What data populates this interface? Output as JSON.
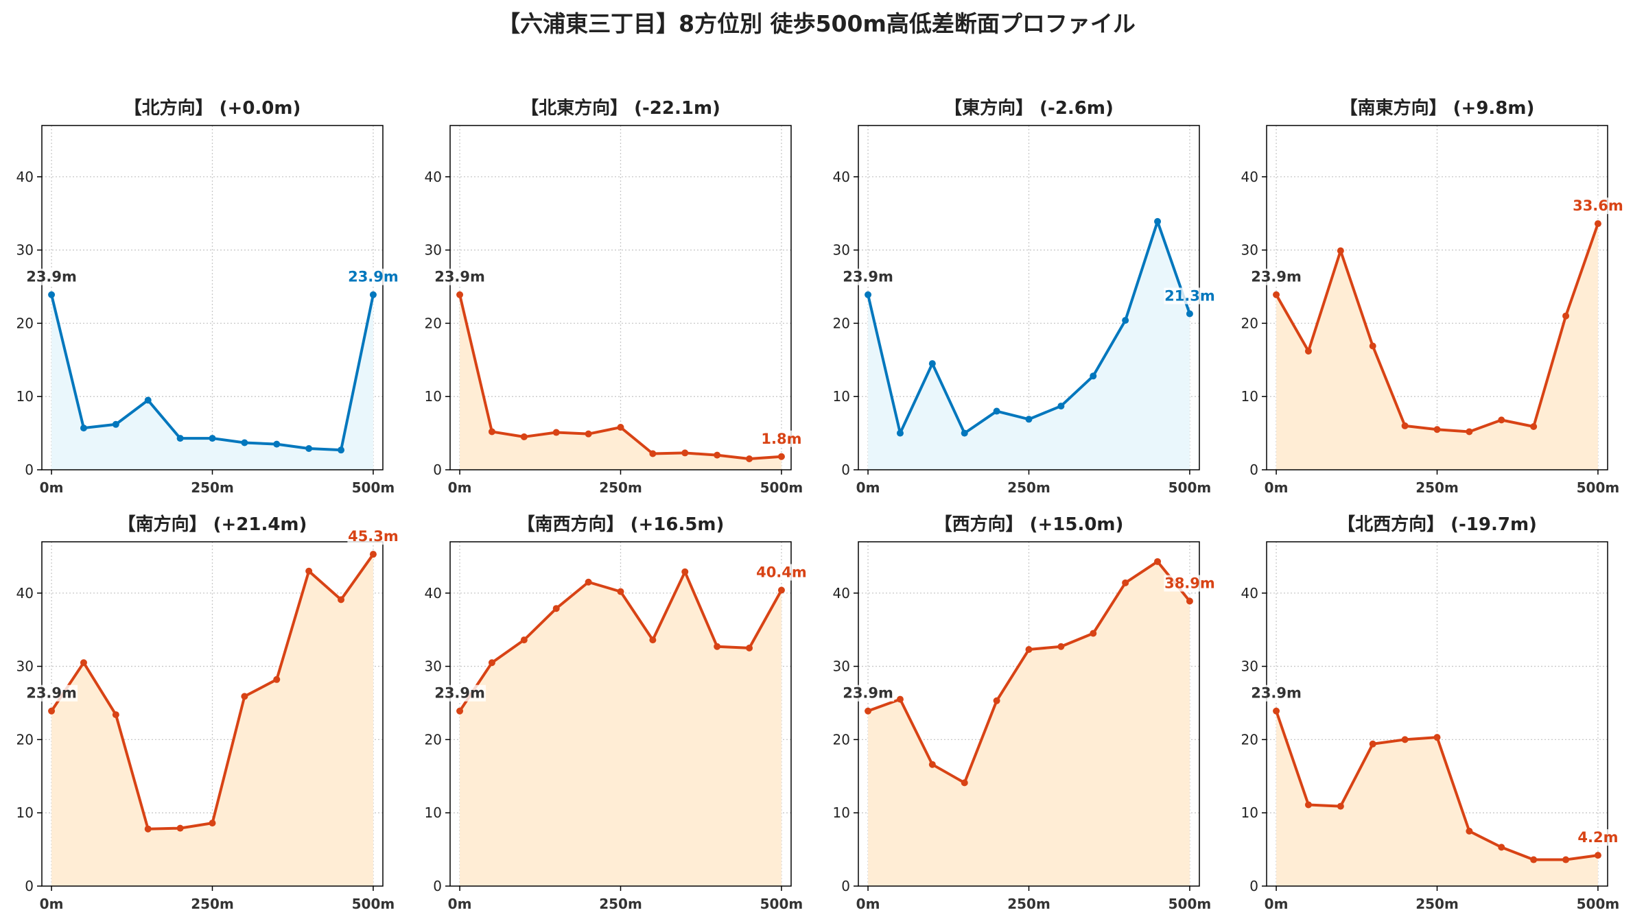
{
  "title": "【六浦東三丁目】8方位別 徒歩500m高低差断面プロファイル",
  "colors": {
    "up": "#d84315",
    "up_fill": "#ffedd5",
    "down": "#0277bd",
    "down_fill": "#eaf7fc",
    "label": "#333333"
  },
  "chart_data": [
    {
      "type": "area",
      "title": "【北方向】 (+0.0m)",
      "trend": "down",
      "x": [
        0,
        50,
        100,
        150,
        200,
        250,
        300,
        350,
        400,
        450,
        500
      ],
      "values": [
        23.9,
        5.7,
        6.2,
        9.5,
        4.3,
        4.3,
        3.7,
        3.5,
        2.9,
        2.7,
        23.9
      ],
      "start_label": "23.9m",
      "end_label": "23.9m",
      "xticks": [
        "0m",
        "250m",
        "500m"
      ],
      "yticks": [
        0,
        10,
        20,
        30,
        40
      ],
      "ylim": [
        0,
        47
      ],
      "xlim": [
        -15,
        515
      ],
      "grid": true
    },
    {
      "type": "area",
      "title": "【北東方向】 (-22.1m)",
      "trend": "up",
      "x": [
        0,
        50,
        100,
        150,
        200,
        250,
        300,
        350,
        400,
        450,
        500
      ],
      "values": [
        23.9,
        5.2,
        4.5,
        5.1,
        4.9,
        5.8,
        2.2,
        2.3,
        2.0,
        1.5,
        1.8
      ],
      "start_label": "23.9m",
      "end_label": "1.8m",
      "xticks": [
        "0m",
        "250m",
        "500m"
      ],
      "yticks": [
        0,
        10,
        20,
        30,
        40
      ],
      "ylim": [
        0,
        47
      ],
      "xlim": [
        -15,
        515
      ],
      "grid": true
    },
    {
      "type": "area",
      "title": "【東方向】 (-2.6m)",
      "trend": "down",
      "x": [
        0,
        50,
        100,
        150,
        200,
        250,
        300,
        350,
        400,
        450,
        500
      ],
      "values": [
        23.9,
        5.0,
        14.5,
        5.0,
        8.0,
        6.9,
        8.7,
        12.8,
        20.4,
        33.9,
        21.3
      ],
      "start_label": "23.9m",
      "end_label": "21.3m",
      "xticks": [
        "0m",
        "250m",
        "500m"
      ],
      "yticks": [
        0,
        10,
        20,
        30,
        40
      ],
      "ylim": [
        0,
        47
      ],
      "xlim": [
        -15,
        515
      ],
      "grid": true
    },
    {
      "type": "area",
      "title": "【南東方向】 (+9.8m)",
      "trend": "up",
      "x": [
        0,
        50,
        100,
        150,
        200,
        250,
        300,
        350,
        400,
        450,
        500
      ],
      "values": [
        23.9,
        16.2,
        29.9,
        16.9,
        6.0,
        5.5,
        5.2,
        6.8,
        5.9,
        21.0,
        33.6
      ],
      "start_label": "23.9m",
      "end_label": "33.6m",
      "xticks": [
        "0m",
        "250m",
        "500m"
      ],
      "yticks": [
        0,
        10,
        20,
        30,
        40
      ],
      "ylim": [
        0,
        47
      ],
      "xlim": [
        -15,
        515
      ],
      "grid": true
    },
    {
      "type": "area",
      "title": "【南方向】 (+21.4m)",
      "trend": "up",
      "x": [
        0,
        50,
        100,
        150,
        200,
        250,
        300,
        350,
        400,
        450,
        500
      ],
      "values": [
        23.9,
        30.5,
        23.4,
        7.8,
        7.9,
        8.6,
        25.9,
        28.2,
        43.0,
        39.1,
        45.3
      ],
      "start_label": "23.9m",
      "end_label": "45.3m",
      "xticks": [
        "0m",
        "250m",
        "500m"
      ],
      "yticks": [
        0,
        10,
        20,
        30,
        40
      ],
      "ylim": [
        0,
        47
      ],
      "xlim": [
        -15,
        515
      ],
      "grid": true
    },
    {
      "type": "area",
      "title": "【南西方向】 (+16.5m)",
      "trend": "up",
      "x": [
        0,
        50,
        100,
        150,
        200,
        250,
        300,
        350,
        400,
        450,
        500
      ],
      "values": [
        23.9,
        30.5,
        33.6,
        37.9,
        41.5,
        40.2,
        33.6,
        42.9,
        32.7,
        32.5,
        40.4
      ],
      "start_label": "23.9m",
      "end_label": "40.4m",
      "xticks": [
        "0m",
        "250m",
        "500m"
      ],
      "yticks": [
        0,
        10,
        20,
        30,
        40
      ],
      "ylim": [
        0,
        47
      ],
      "xlim": [
        -15,
        515
      ],
      "grid": true
    },
    {
      "type": "area",
      "title": "【西方向】 (+15.0m)",
      "trend": "up",
      "x": [
        0,
        50,
        100,
        150,
        200,
        250,
        300,
        350,
        400,
        450,
        500
      ],
      "values": [
        23.9,
        25.5,
        16.6,
        14.1,
        25.3,
        32.3,
        32.7,
        34.5,
        41.4,
        44.3,
        38.9
      ],
      "start_label": "23.9m",
      "end_label": "38.9m",
      "xticks": [
        "0m",
        "250m",
        "500m"
      ],
      "yticks": [
        0,
        10,
        20,
        30,
        40
      ],
      "ylim": [
        0,
        47
      ],
      "xlim": [
        -15,
        515
      ],
      "grid": true
    },
    {
      "type": "area",
      "title": "【北西方向】 (-19.7m)",
      "trend": "up",
      "x": [
        0,
        50,
        100,
        150,
        200,
        250,
        300,
        350,
        400,
        450,
        500
      ],
      "values": [
        23.9,
        11.1,
        10.9,
        19.4,
        20.0,
        20.3,
        7.5,
        5.3,
        3.6,
        3.6,
        4.2
      ],
      "start_label": "23.9m",
      "end_label": "4.2m",
      "xticks": [
        "0m",
        "250m",
        "500m"
      ],
      "yticks": [
        0,
        10,
        20,
        30,
        40
      ],
      "ylim": [
        0,
        47
      ],
      "xlim": [
        -15,
        515
      ],
      "grid": true
    }
  ]
}
